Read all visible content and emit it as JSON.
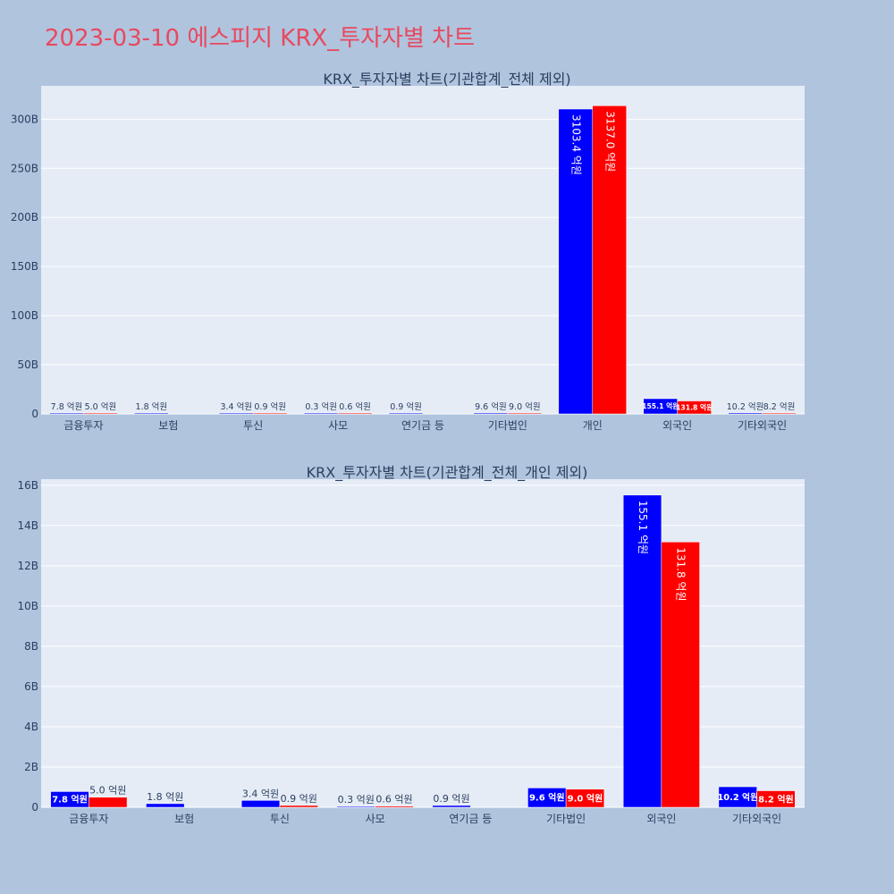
{
  "page": {
    "title": "2023-03-10 에스피지 KRX_투자자별 차트"
  },
  "colors": {
    "background": "#b0c4de",
    "plot_background": "#e5ecf6",
    "title": "#e8495f",
    "series_buy": "#0000ff",
    "series_sell": "#ff0000",
    "text": "#2a3f5f"
  },
  "chart_data": [
    {
      "type": "bar",
      "title": "KRX_투자자별 차트(기관합계_전체 제외)",
      "categories": [
        "금융투자",
        "보험",
        "투신",
        "사모",
        "연기금 등",
        "기타법인",
        "개인",
        "외국인",
        "기타외국인"
      ],
      "series": [
        {
          "color": "#0000ff",
          "values": [
            0.78,
            0.18,
            0.34,
            0.03,
            0.09,
            0.96,
            310.34,
            15.51,
            1.02
          ],
          "labels": [
            "7.8 억원",
            "1.8 억원",
            "3.4 억원",
            "0.3 억원",
            "0.9 억원",
            "9.6 억원",
            "3103.4 억원",
            "155.1 억원",
            "10.2 억원"
          ]
        },
        {
          "color": "#ff0000",
          "values": [
            0.5,
            null,
            0.09,
            0.06,
            null,
            0.9,
            313.7,
            13.18,
            0.82
          ],
          "labels": [
            "5.0 억원",
            "",
            "0.9 억원",
            "0.6 억원",
            "",
            "9.0 억원",
            "3137.0 억원",
            "131.8 억원",
            "8.2 억원"
          ]
        }
      ],
      "yticks": [
        0,
        50,
        100,
        150,
        200,
        250,
        300
      ],
      "ytick_labels": [
        "0",
        "50B",
        "100B",
        "150B",
        "200B",
        "250B",
        "300B"
      ],
      "ylim": [
        0,
        334
      ],
      "grid": true,
      "legend": "none"
    },
    {
      "type": "bar",
      "title": "KRX_투자자별 차트(기관합계_전체_개인 제외)",
      "categories": [
        "금융투자",
        "보험",
        "투신",
        "사모",
        "연기금 등",
        "기타법인",
        "외국인",
        "기타외국인"
      ],
      "series": [
        {
          "color": "#0000ff",
          "values": [
            0.78,
            0.18,
            0.34,
            0.03,
            0.09,
            0.96,
            15.51,
            1.02
          ],
          "labels": [
            "7.8 억원",
            "1.8 억원",
            "3.4 억원",
            "0.3 억원",
            "0.9 억원",
            "9.6 억원",
            "155.1 억원",
            "10.2 억원"
          ]
        },
        {
          "color": "#ff0000",
          "values": [
            0.5,
            null,
            0.09,
            0.06,
            null,
            0.9,
            13.18,
            0.82
          ],
          "labels": [
            "5.0 억원",
            "",
            "0.9 억원",
            "0.6 억원",
            "",
            "9.0 억원",
            "131.8 억원",
            "8.2 억원"
          ]
        }
      ],
      "yticks": [
        0,
        2,
        4,
        6,
        8,
        10,
        12,
        14,
        16
      ],
      "ytick_labels": [
        "0",
        "2B",
        "4B",
        "6B",
        "8B",
        "10B",
        "12B",
        "14B",
        "16B"
      ],
      "ylim": [
        0,
        16.3
      ],
      "grid": true,
      "legend": "none"
    }
  ]
}
